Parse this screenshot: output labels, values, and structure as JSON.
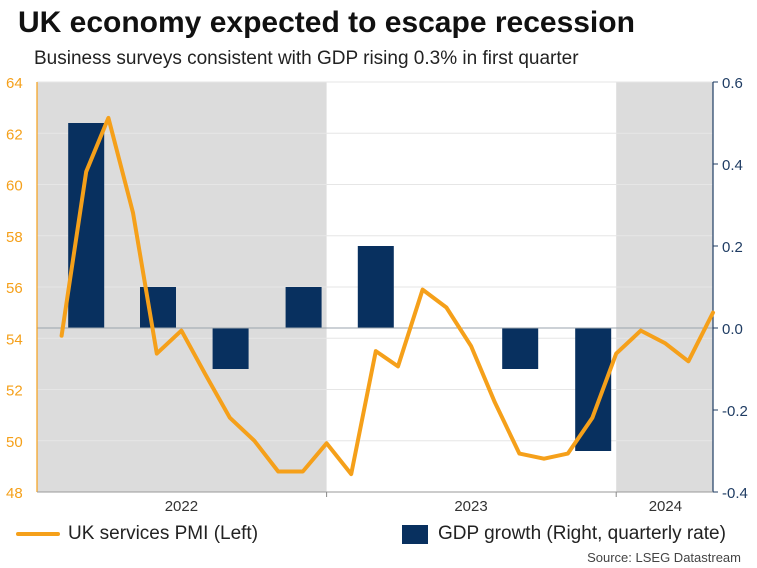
{
  "title": "UK economy expected to escape recession",
  "subtitle": "Business surveys consistent with GDP rising 0.3% in first quarter",
  "source": "Source: LSEG Datastream",
  "colors": {
    "pmi_line": "#f5a01a",
    "gdp_bar": "#08305f",
    "left_axis": "#f5a01a",
    "right_axis": "#1f3c63",
    "shade": "#dcdcdc",
    "grid": "#e6e6e6"
  },
  "legend": {
    "pmi_label": "UK services PMI (Left)",
    "gdp_label": "GDP growth (Right, quarterly rate)"
  },
  "chart_data": {
    "type": "bar+line",
    "left_axis": {
      "ticks": [
        "64",
        "62",
        "60",
        "58",
        "56",
        "54",
        "52",
        "50",
        "48"
      ],
      "range": [
        48,
        64
      ]
    },
    "right_axis": {
      "ticks": [
        "0.6",
        "0.4",
        "0.2",
        "0.0",
        "-0.2",
        "-0.4"
      ],
      "range": [
        -0.4,
        0.6
      ]
    },
    "x_labels": [
      "2022",
      "2023",
      "2024"
    ],
    "shaded_periods": [
      [
        "2021-12-15",
        "2022-12-15"
      ],
      [
        "2023-12-15",
        "2024-04-15"
      ]
    ],
    "series": [
      {
        "name": "UK services PMI (Left)",
        "type": "line",
        "axis": "left",
        "points": [
          [
            "2022-01",
            54.1
          ],
          [
            "2022-02",
            60.5
          ],
          [
            "2022-03",
            62.6
          ],
          [
            "2022-04",
            58.9
          ],
          [
            "2022-05",
            53.4
          ],
          [
            "2022-06",
            54.3
          ],
          [
            "2022-07",
            52.6
          ],
          [
            "2022-08",
            50.9
          ],
          [
            "2022-09",
            50.0
          ],
          [
            "2022-10",
            48.8
          ],
          [
            "2022-11",
            48.8
          ],
          [
            "2022-12",
            49.9
          ],
          [
            "2023-01",
            48.7
          ],
          [
            "2023-02",
            53.5
          ],
          [
            "2023-03",
            52.9
          ],
          [
            "2023-04",
            55.9
          ],
          [
            "2023-05",
            55.2
          ],
          [
            "2023-06",
            53.7
          ],
          [
            "2023-07",
            51.5
          ],
          [
            "2023-08",
            49.5
          ],
          [
            "2023-09",
            49.3
          ],
          [
            "2023-10",
            49.5
          ],
          [
            "2023-11",
            50.9
          ],
          [
            "2023-12",
            53.4
          ],
          [
            "2024-01",
            54.3
          ],
          [
            "2024-02",
            53.8
          ],
          [
            "2024-03",
            53.1
          ],
          [
            "2024-04",
            55.0
          ]
        ]
      },
      {
        "name": "GDP growth (Right, quarterly rate)",
        "type": "bar",
        "axis": "right",
        "points": [
          [
            "2022-Q1",
            0.5
          ],
          [
            "2022-Q2",
            0.1
          ],
          [
            "2022-Q3",
            -0.1
          ],
          [
            "2022-Q4",
            0.1
          ],
          [
            "2023-Q1",
            0.2
          ],
          [
            "2023-Q2",
            0.0
          ],
          [
            "2023-Q3",
            -0.1
          ],
          [
            "2023-Q4",
            -0.3
          ]
        ]
      }
    ]
  }
}
